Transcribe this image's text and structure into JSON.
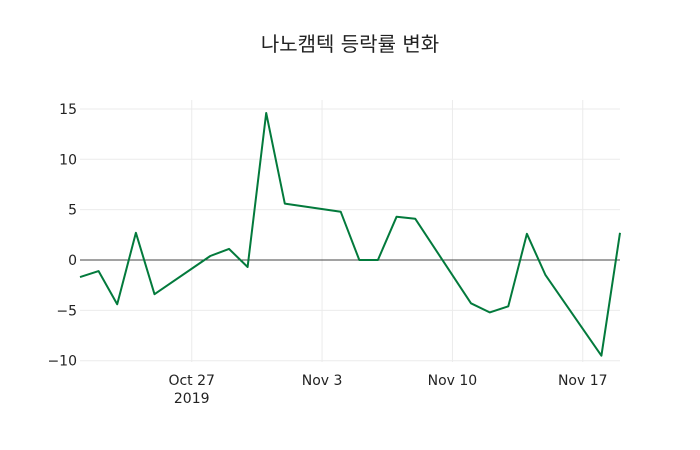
{
  "chart_data": {
    "type": "line",
    "title": "나노캠텍 등락률 변화",
    "xlabel": "",
    "ylabel": "",
    "x": [
      "2019-10-21",
      "2019-10-22",
      "2019-10-23",
      "2019-10-24",
      "2019-10-25",
      "2019-10-28",
      "2019-10-29",
      "2019-10-30",
      "2019-10-31",
      "2019-11-01",
      "2019-11-04",
      "2019-11-05",
      "2019-11-06",
      "2019-11-07",
      "2019-11-08",
      "2019-11-11",
      "2019-11-12",
      "2019-11-13",
      "2019-11-14",
      "2019-11-15",
      "2019-11-18",
      "2019-11-19"
    ],
    "series": [
      {
        "name": "등락률",
        "color": "#037a3c",
        "values": [
          -1.7,
          -1.1,
          -4.4,
          2.7,
          -3.4,
          0.4,
          1.1,
          -0.7,
          14.6,
          5.6,
          4.8,
          0.0,
          0.0,
          4.3,
          4.1,
          -4.3,
          -5.2,
          -4.6,
          2.6,
          -1.5,
          -9.5,
          2.7
        ]
      }
    ],
    "xticks": [
      {
        "date": "2019-10-27",
        "label": "Oct 27",
        "sublabel": "2019"
      },
      {
        "date": "2019-11-03",
        "label": "Nov 3",
        "sublabel": ""
      },
      {
        "date": "2019-11-10",
        "label": "Nov 10",
        "sublabel": ""
      },
      {
        "date": "2019-11-17",
        "label": "Nov 17",
        "sublabel": ""
      }
    ],
    "yticks": [
      -10,
      -5,
      0,
      5,
      10,
      15
    ],
    "ytick_labels": [
      "−10",
      "−5",
      "0",
      "5",
      "10",
      "15"
    ],
    "ylim": [
      -10.1,
      16
    ],
    "xlim": [
      "2019-10-21",
      "2019-11-19"
    ],
    "grid": true,
    "legend": "none"
  }
}
